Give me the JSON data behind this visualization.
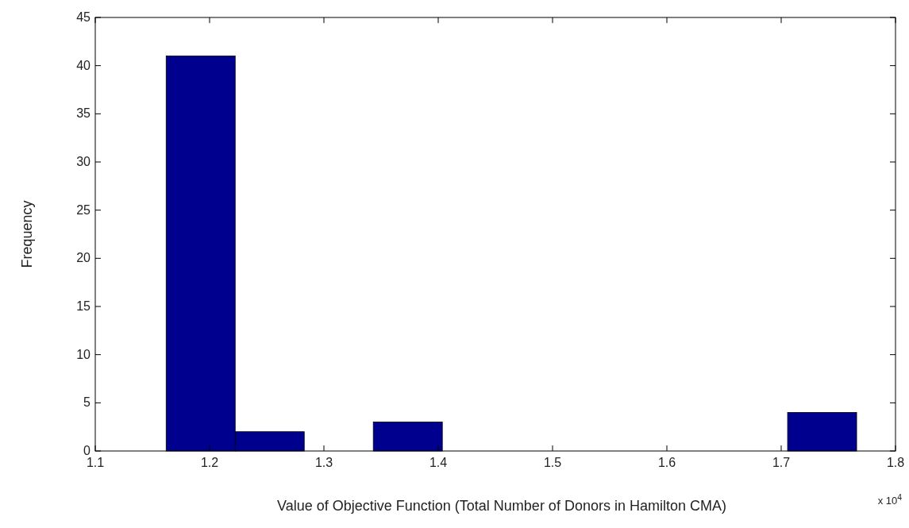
{
  "chart_data": {
    "type": "histogram",
    "xlabel": "Value of Objective Function (Total Number of Donors in Hamilton CMA)",
    "ylabel": "Frequency",
    "bins": [
      1.162,
      1.2224,
      1.2828,
      1.3432,
      1.4036,
      1.464,
      1.5244,
      1.5848,
      1.6452,
      1.7056,
      1.766
    ],
    "values": [
      41,
      2,
      0,
      3,
      0,
      0,
      0,
      0,
      0,
      4
    ],
    "color": "#00008f",
    "xlim": [
      1.1,
      1.8
    ],
    "xticks": [
      1.1,
      1.2,
      1.3,
      1.4,
      1.5,
      1.6,
      1.7,
      1.8
    ],
    "ylim": [
      0,
      45
    ],
    "yticks": [
      0,
      5,
      10,
      15,
      20,
      25,
      30,
      35,
      40,
      45
    ],
    "annotations": [
      "x 10$^{4}$"
    ],
    "grid": false
  }
}
